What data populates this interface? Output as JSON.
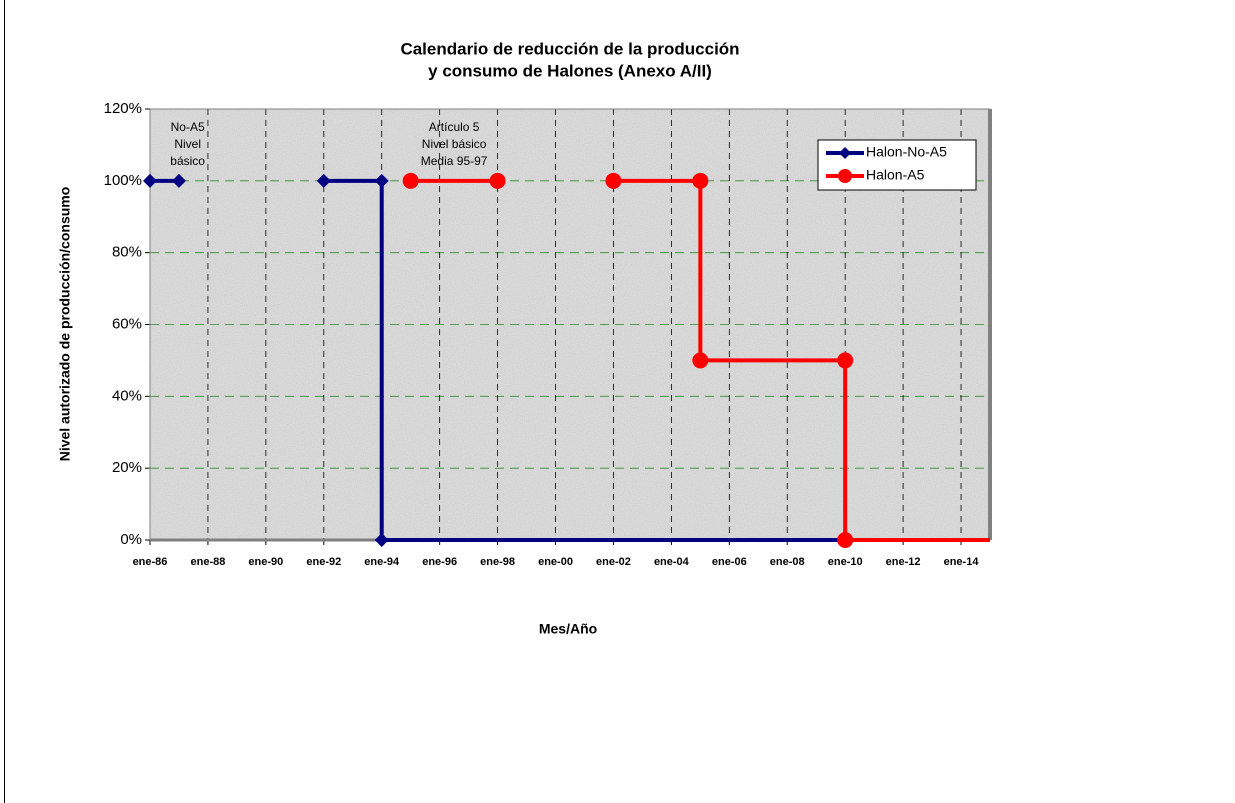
{
  "chart_data": {
    "type": "line",
    "title": "Calendario de reducción de la producción",
    "subtitle": "y consumo de Halones (Anexo A/II)",
    "x_label": "Mes/Año",
    "y_label": "Nivel autorizado de producción/consumo",
    "xlim": [
      1986,
      2015
    ],
    "xticks": [
      {
        "value": 1986,
        "label": "ene-86"
      },
      {
        "value": 1988,
        "label": "ene-88"
      },
      {
        "value": 1990,
        "label": "ene-90"
      },
      {
        "value": 1992,
        "label": "ene-92"
      },
      {
        "value": 1994,
        "label": "ene-94"
      },
      {
        "value": 1996,
        "label": "ene-96"
      },
      {
        "value": 1998,
        "label": "ene-98"
      },
      {
        "value": 2000,
        "label": "ene-00"
      },
      {
        "value": 2002,
        "label": "ene-02"
      },
      {
        "value": 2004,
        "label": "ene-04"
      },
      {
        "value": 2006,
        "label": "ene-06"
      },
      {
        "value": 2008,
        "label": "ene-08"
      },
      {
        "value": 2010,
        "label": "ene-10"
      },
      {
        "value": 2012,
        "label": "ene-12"
      },
      {
        "value": 2014,
        "label": "ene-14"
      }
    ],
    "ylim": [
      0,
      120
    ],
    "yticks": [
      {
        "value": 0,
        "label": "0%"
      },
      {
        "value": 20,
        "label": "20%"
      },
      {
        "value": 40,
        "label": "40%"
      },
      {
        "value": 60,
        "label": "60%"
      },
      {
        "value": 80,
        "label": "80%"
      },
      {
        "value": 100,
        "label": "100%"
      },
      {
        "value": 120,
        "label": "120%"
      }
    ],
    "grid": true,
    "legend": "top-right",
    "series": [
      {
        "name": "Halon-No-A5",
        "color": "#000080",
        "marker": "diamond",
        "x": [
          1986,
          1987,
          null,
          1992,
          1994,
          1994,
          2015
        ],
        "values": [
          100,
          100,
          null,
          100,
          100,
          0,
          0
        ]
      },
      {
        "name": "Halon-A5",
        "color": "#ff0000",
        "marker": "circle",
        "x": [
          1995,
          1998,
          null,
          2002,
          2005,
          2005,
          2010,
          2010,
          2015
        ],
        "values": [
          100,
          100,
          null,
          100,
          100,
          50,
          50,
          0,
          0
        ]
      }
    ],
    "annotations": [
      {
        "lines": [
          "No-A5",
          "Nivel",
          "básico"
        ],
        "x": 1987.3
      },
      {
        "lines": [
          "Artículo 5",
          "Nivel básico",
          "Media 95-97"
        ],
        "x": 1996.5
      }
    ]
  }
}
